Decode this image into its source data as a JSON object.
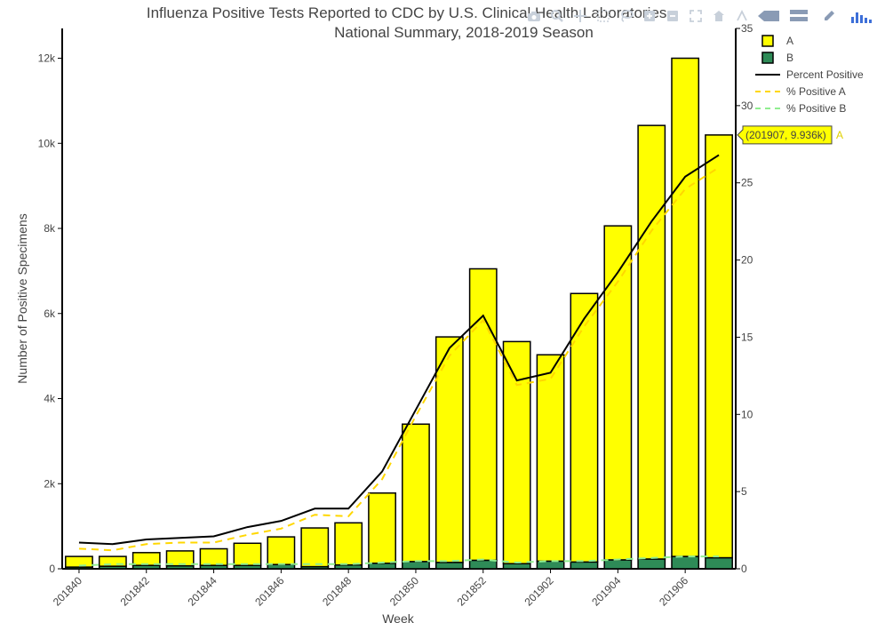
{
  "chart_data": {
    "type": "bar",
    "title_line1": "Influenza Positive Tests Reported to CDC by U.S. Clinical Health Laboratories,",
    "title_line2": "National Summary, 2018-2019 Season",
    "xlabel": "Week",
    "ylabel": "Number of Positive Specimens",
    "y_right_ticks": [
      "0",
      "5",
      "10",
      "15",
      "20",
      "25",
      "30",
      "35"
    ],
    "y_left_ticks": [
      "0",
      "2k",
      "4k",
      "6k",
      "8k",
      "10k",
      "12k"
    ],
    "ylim": [
      0,
      12700
    ],
    "y2lim": [
      0,
      35
    ],
    "barmode": "stack",
    "categories": [
      "201840",
      "201841",
      "201842",
      "201843",
      "201844",
      "201845",
      "201846",
      "201847",
      "201848",
      "201849",
      "201850",
      "201851",
      "201852",
      "201901",
      "201902",
      "201903",
      "201904",
      "201905",
      "201906",
      "201907"
    ],
    "x_tick_labels": [
      "201840",
      "201842",
      "201844",
      "201846",
      "201848",
      "201850",
      "201852",
      "201902",
      "201904",
      "201906"
    ],
    "series": [
      {
        "name": "B",
        "kind": "bar",
        "color": "#2e8b57",
        "values": [
          40,
          60,
          80,
          70,
          80,
          80,
          100,
          50,
          90,
          130,
          170,
          150,
          200,
          120,
          180,
          160,
          210,
          230,
          290,
          260
        ]
      },
      {
        "name": "A",
        "kind": "bar",
        "color": "#ffff00",
        "values": [
          250,
          230,
          300,
          350,
          390,
          520,
          650,
          910,
          990,
          1650,
          3230,
          5300,
          6850,
          5220,
          4850,
          6310,
          7850,
          10190,
          11710,
          9936
        ]
      },
      {
        "name": "Percent Positive",
        "kind": "line",
        "color": "#000000",
        "dash": "solid",
        "values": [
          1.7,
          1.6,
          1.9,
          2.0,
          2.1,
          2.7,
          3.1,
          3.9,
          3.9,
          6.3,
          10.3,
          14.3,
          16.4,
          12.2,
          12.7,
          16.2,
          19.2,
          22.5,
          25.4,
          26.8
        ]
      },
      {
        "name": "% Positive A",
        "kind": "line",
        "color": "#ffd700",
        "dash": "dash",
        "values": [
          1.3,
          1.2,
          1.6,
          1.7,
          1.7,
          2.2,
          2.6,
          3.5,
          3.4,
          5.8,
          9.9,
          13.8,
          16.1,
          11.9,
          12.3,
          15.7,
          18.6,
          21.9,
          24.6,
          26.0
        ]
      },
      {
        "name": "% Positive B",
        "kind": "line",
        "color": "#90ee90",
        "dash": "dash",
        "values": [
          0.2,
          0.3,
          0.3,
          0.3,
          0.3,
          0.3,
          0.3,
          0.3,
          0.3,
          0.4,
          0.5,
          0.5,
          0.6,
          0.4,
          0.5,
          0.5,
          0.6,
          0.7,
          0.8,
          0.8
        ]
      }
    ],
    "legend": [
      "A",
      "B",
      "Percent Positive",
      "% Positive A",
      "% Positive B"
    ],
    "legend_placement": "top-right",
    "tooltip": {
      "text": "(201907, 9.936k)",
      "series": "A"
    }
  },
  "modebar": {
    "icons": [
      "camera-icon",
      "zoom-icon",
      "pan-icon",
      "box-select-icon",
      "lasso-icon",
      "zoom-in-icon",
      "zoom-out-icon",
      "autoscale-icon",
      "reset-axes-icon",
      "spike-lines-icon",
      "hover-closest-icon",
      "hover-compare-icon",
      "edit-icon",
      "plotly-logo-icon"
    ]
  }
}
